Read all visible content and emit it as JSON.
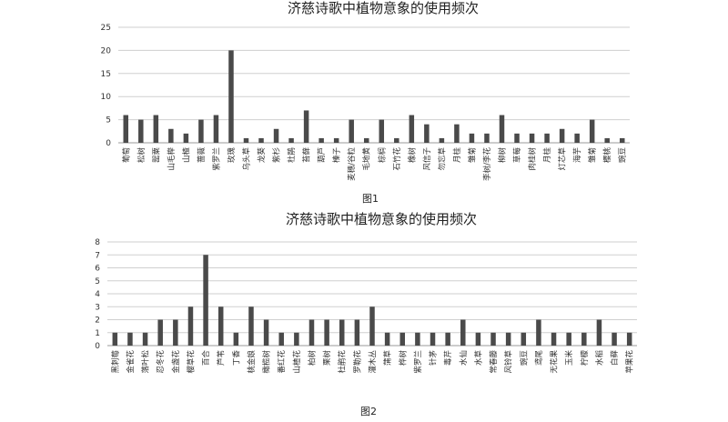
{
  "chart_data": [
    {
      "type": "bar",
      "title": "济慈诗歌中植物意象的使用频次",
      "caption": "图1",
      "ylim": [
        0,
        25
      ],
      "yticks": [
        0,
        5,
        10,
        15,
        20,
        25
      ],
      "grid": true,
      "categories": [
        "葡萄",
        "松树",
        "罂粟",
        "山毛榉",
        "山楂",
        "蔷薇",
        "紫罗兰",
        "玫瑰",
        "乌头草",
        "龙葵",
        "紫杉",
        "杜鹃",
        "苔藓",
        "葫芦",
        "榛子",
        "麦穗/谷粒",
        "毛地黄",
        "棕榈",
        "石竹花",
        "橡树",
        "风信子",
        "勿忘草",
        "月桂",
        "雏菊",
        "李树/李花",
        "柳树",
        "草莓",
        "肉桂树",
        "月桂",
        "灯芯草",
        "海芋",
        "雏菊",
        "樱桃",
        "豌豆"
      ],
      "values": [
        6,
        5,
        6,
        3,
        2,
        5,
        6,
        20,
        1,
        1,
        3,
        1,
        7,
        1,
        1,
        5,
        1,
        5,
        1,
        6,
        4,
        1,
        4,
        2,
        2,
        6,
        2,
        2,
        2,
        3,
        2,
        5,
        1,
        1
      ]
    },
    {
      "type": "bar",
      "title": "济慈诗歌中植物意象的使用频次",
      "caption": "图2",
      "ylim": [
        0,
        8
      ],
      "yticks": [
        0,
        1,
        2,
        3,
        4,
        5,
        6,
        7,
        8
      ],
      "grid": true,
      "categories": [
        "黑刺莓",
        "金雀花",
        "落叶松",
        "忍冬花",
        "金盏花",
        "樱草花",
        "百合",
        "芦苇",
        "丁香",
        "桃金娘",
        "橄榄树",
        "番红花",
        "山楂花",
        "柏树",
        "栗树",
        "杜鹃花",
        "罗勒花",
        "灌木丛",
        "蒲草",
        "桦树",
        "紫罗兰",
        "针茅",
        "毒芹",
        "水仙",
        "水草",
        "常春藤",
        "风铃草",
        "豌豆",
        "鸢尾",
        "无花果",
        "玉米",
        "柠檬",
        "水稻",
        "白藓",
        "苹果花"
      ],
      "values": [
        1,
        1,
        1,
        2,
        2,
        3,
        7,
        3,
        1,
        3,
        2,
        1,
        1,
        2,
        2,
        2,
        2,
        3,
        1,
        1,
        1,
        1,
        1,
        2,
        1,
        1,
        1,
        1,
        2,
        1,
        1,
        1,
        2,
        1,
        1
      ]
    }
  ]
}
